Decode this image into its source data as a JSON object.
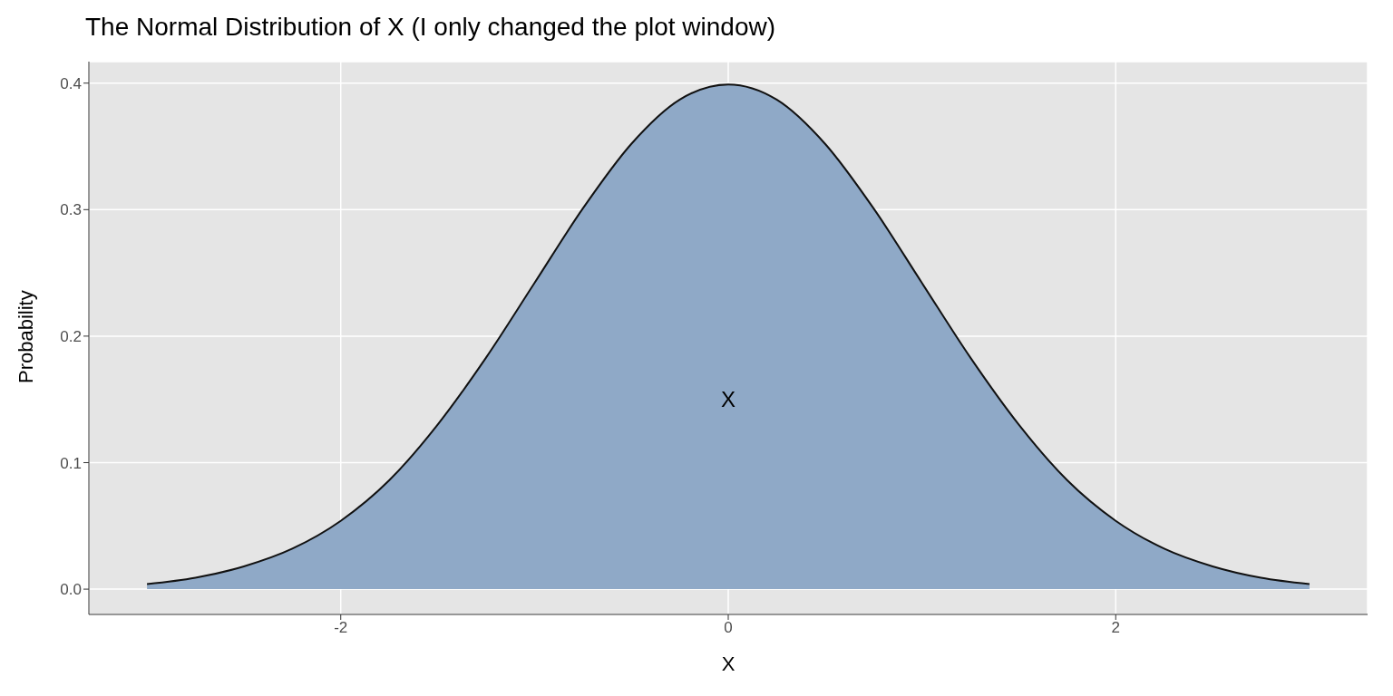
{
  "chart_data": {
    "type": "area",
    "title": "The Normal Distribution of X (I only changed the plot window)",
    "xlabel": "X",
    "ylabel": "Probability",
    "x": [
      -3,
      -2.75,
      -2.5,
      -2.25,
      -2,
      -1.75,
      -1.5,
      -1.25,
      -1,
      -0.75,
      -0.5,
      -0.25,
      0,
      0.25,
      0.5,
      0.75,
      1,
      1.25,
      1.5,
      1.75,
      2,
      2.25,
      2.5,
      2.75,
      3
    ],
    "series": [
      {
        "color": "#8fa9c7",
        "values": [
          0.004,
          0.009,
          0.018,
          0.032,
          0.054,
          0.086,
          0.13,
          0.183,
          0.242,
          0.301,
          0.352,
          0.387,
          0.399,
          0.387,
          0.352,
          0.301,
          0.242,
          0.183,
          0.13,
          0.086,
          0.054,
          0.032,
          0.018,
          0.009,
          0.004
        ]
      }
    ],
    "annotations": [
      "X"
    ],
    "xlim": [
      -3.3,
      3.3
    ],
    "xticks": [
      -2,
      0,
      2
    ],
    "ylim": [
      -0.02,
      0.417
    ],
    "yticks": [
      {
        "value": 0,
        "label": "0.0"
      },
      0.1,
      0.2,
      0.3,
      0.4
    ],
    "grid": true
  }
}
